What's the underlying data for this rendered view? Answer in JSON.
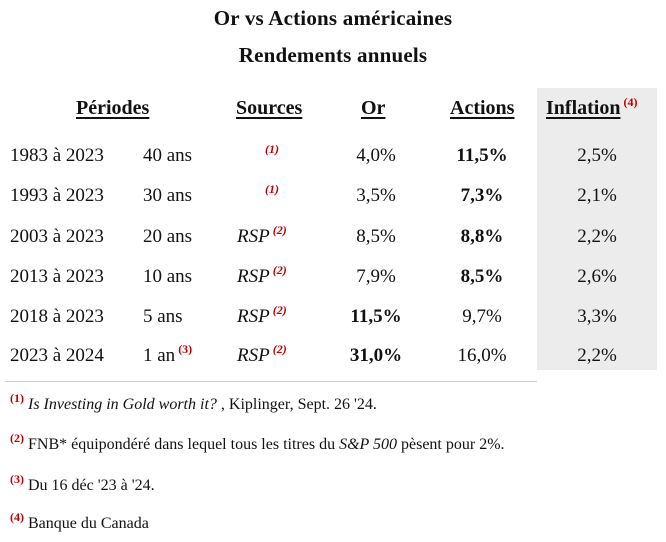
{
  "title": "Or vs Actions américaines",
  "subtitle": "Rendements annuels",
  "headers": {
    "periods": "Périodes",
    "sources": "Sources",
    "gold": "Or",
    "stocks": "Actions",
    "inflation": "Inflation",
    "inflation_note": "(4)"
  },
  "rows": [
    {
      "period": "1983 à 2023",
      "years": "40 ans",
      "years_note": "",
      "source": "",
      "source_note": "(1)",
      "gold": "4,0%",
      "stocks": "11,5%",
      "inflation": "2,5%"
    },
    {
      "period": "1993 à 2023",
      "years": "30 ans",
      "years_note": "",
      "source": "",
      "source_note": "(1)",
      "gold": "3,5%",
      "stocks": "7,3%",
      "inflation": "2,1%"
    },
    {
      "period": "2003 à 2023",
      "years": "20 ans",
      "years_note": "",
      "source": "RSP",
      "source_note": "(2)",
      "gold": "8,5%",
      "stocks": "8,8%",
      "inflation": "2,2%"
    },
    {
      "period": "2013 à 2023",
      "years": "10 ans",
      "years_note": "",
      "source": "RSP",
      "source_note": "(2)",
      "gold": "7,9%",
      "stocks": "8,5%",
      "inflation": "2,6%"
    },
    {
      "period": "2018 à 2023",
      "years": "5 ans",
      "years_note": "",
      "source": "RSP",
      "source_note": "(2)",
      "gold": "11,5%",
      "stocks": "9,7%",
      "inflation": "3,3%"
    },
    {
      "period": "2023 à 2024",
      "years": "1 an",
      "years_note": "(3)",
      "source": "RSP",
      "source_note": "(2)",
      "gold": "31,0%",
      "stocks": "16,0%",
      "inflation": "2,2%"
    }
  ],
  "notes": [
    {
      "marker": "(1)",
      "italic": "Is Investing in Gold worth it?",
      "text": " , Kiplinger, Sept. 26 '24."
    },
    {
      "marker": "(2)",
      "text_a": "FNB* équipondéré dans lequel tous les titres du ",
      "italic": "S&P 500",
      "text_b": "  pèsent pour 2%."
    },
    {
      "marker": "(3)",
      "text": "Du 16 déc '23 à '24."
    },
    {
      "marker": "(4)",
      "text": "Banque du Canada"
    }
  ]
}
